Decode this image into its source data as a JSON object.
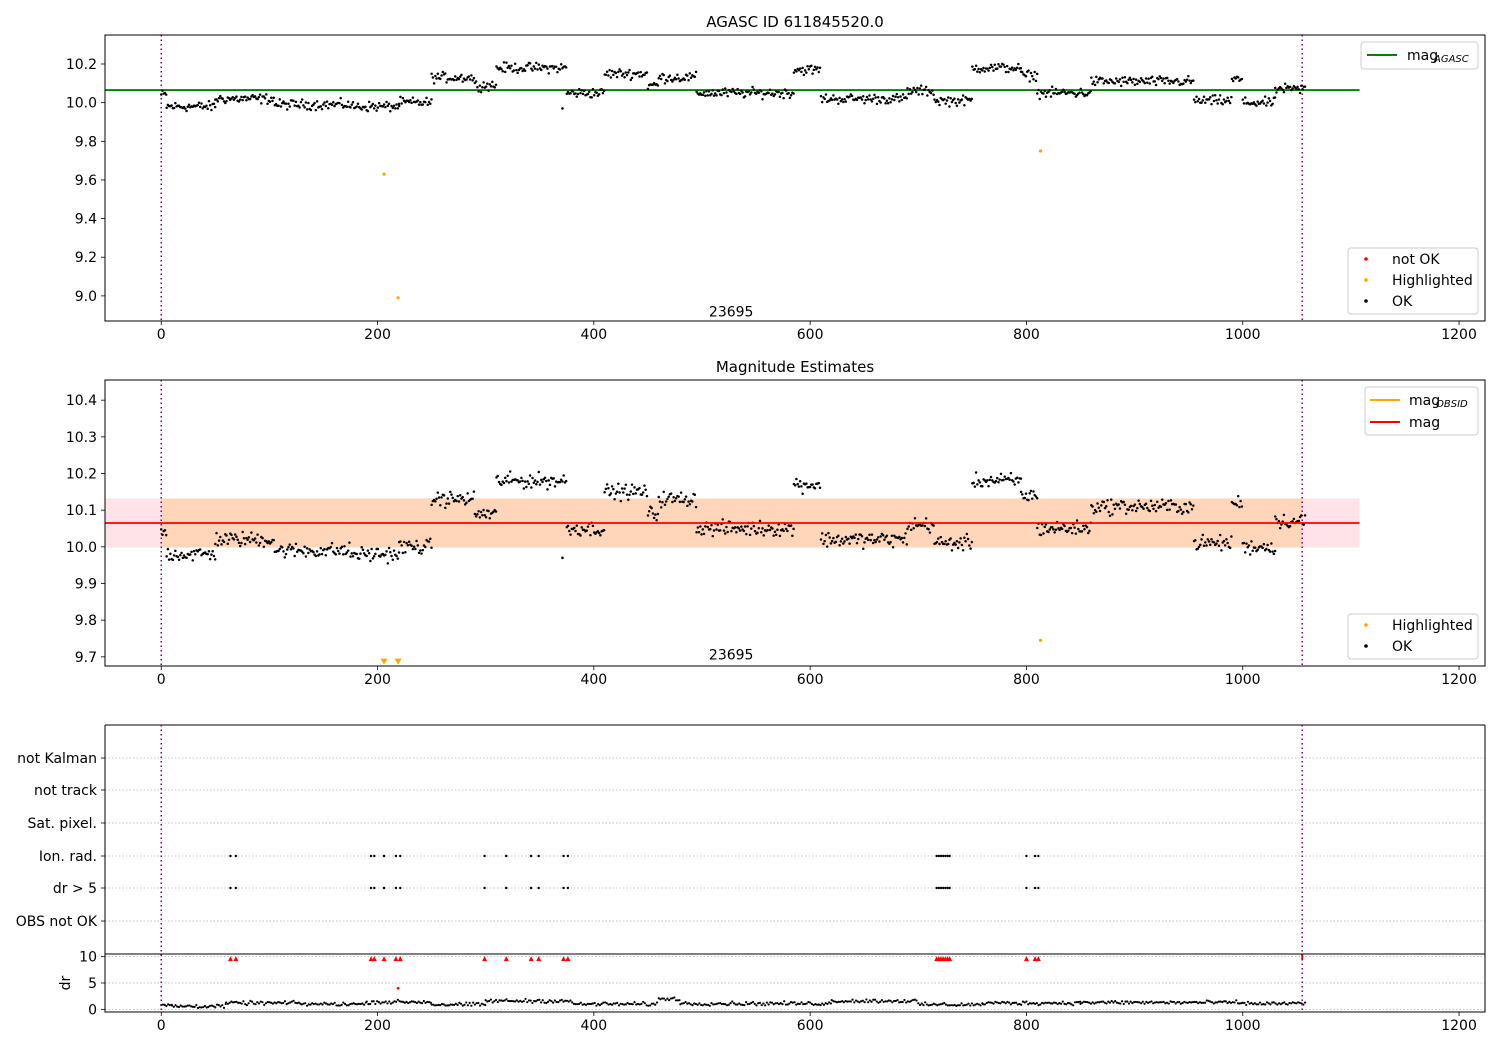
{
  "figure": {
    "title": "AGASC ID 611845520.0",
    "subtitle": "Magnitude Estimates"
  },
  "chart_data": [
    {
      "type": "scatter",
      "title": "AGASC ID 611845520.0",
      "xlim": [
        -52,
        1224
      ],
      "ylim": [
        8.87,
        10.35
      ],
      "xticks": [
        0,
        200,
        400,
        600,
        800,
        1000,
        1200
      ],
      "yticks": [
        9.0,
        9.2,
        9.4,
        9.6,
        9.8,
        10.0,
        10.2
      ],
      "vlines": [
        0,
        1055
      ],
      "obsid_label": {
        "text": "23695",
        "x": 527,
        "y": 8.92
      },
      "mag_agasc": {
        "value": 10.065,
        "xrange": [
          -52,
          1108
        ]
      },
      "ok_segments": [
        [
          0,
          5,
          10.04
        ],
        [
          5,
          50,
          9.98
        ],
        [
          50,
          105,
          10.02
        ],
        [
          105,
          175,
          9.99
        ],
        [
          175,
          220,
          9.98
        ],
        [
          220,
          250,
          10.0
        ],
        [
          250,
          290,
          10.13
        ],
        [
          290,
          310,
          10.09
        ],
        [
          310,
          375,
          10.18
        ],
        [
          375,
          410,
          10.05
        ],
        [
          410,
          450,
          10.15
        ],
        [
          450,
          460,
          10.09
        ],
        [
          460,
          495,
          10.13
        ],
        [
          495,
          585,
          10.05
        ],
        [
          585,
          610,
          10.17
        ],
        [
          610,
          690,
          10.02
        ],
        [
          690,
          715,
          10.06
        ],
        [
          715,
          750,
          10.01
        ],
        [
          750,
          795,
          10.18
        ],
        [
          795,
          810,
          10.14
        ],
        [
          810,
          860,
          10.05
        ],
        [
          860,
          955,
          10.11
        ],
        [
          955,
          990,
          10.01
        ],
        [
          990,
          1000,
          10.12
        ],
        [
          1000,
          1030,
          10.0
        ],
        [
          1030,
          1058,
          10.07
        ]
      ],
      "highlighted": [
        [
          206,
          9.63
        ],
        [
          219,
          8.99
        ],
        [
          813,
          9.75
        ]
      ],
      "legend_series": [
        {
          "name": "mag",
          "subscript": "AGASC",
          "color": "#008000"
        }
      ],
      "legend_markers": [
        {
          "name": "not OK",
          "color": "#ff0000"
        },
        {
          "name": "Highlighted",
          "color": "#ffa500"
        },
        {
          "name": "OK",
          "color": "#000000"
        }
      ]
    },
    {
      "type": "scatter",
      "title": "Magnitude Estimates",
      "xlim": [
        -52,
        1224
      ],
      "ylim": [
        9.675,
        10.455
      ],
      "xticks": [
        0,
        200,
        400,
        600,
        800,
        1000,
        1200
      ],
      "yticks": [
        9.7,
        9.8,
        9.9,
        10.0,
        10.1,
        10.2,
        10.3,
        10.4
      ],
      "vlines": [
        0,
        1055
      ],
      "obsid_label": {
        "text": "23695",
        "x": 527,
        "y": 9.706
      },
      "mag": {
        "value": 10.065,
        "band": [
          9.998,
          10.132
        ],
        "xrange": [
          -52,
          1108
        ]
      },
      "mag_obsid": {
        "value": 10.065,
        "band": [
          9.998,
          10.132
        ],
        "xrange": [
          0,
          1055
        ]
      },
      "highlighted_markers": [
        [
          206,
          9.687
        ],
        [
          219,
          9.687
        ]
      ],
      "highlighted": [
        [
          813,
          9.745
        ]
      ],
      "legend_series": [
        {
          "name": "mag",
          "subscript": "OBSID",
          "color": "#ffa500"
        },
        {
          "name": "mag",
          "subscript": "",
          "color": "#ff0000"
        }
      ],
      "legend_markers": [
        {
          "name": "Highlighted",
          "color": "#ffa500"
        },
        {
          "name": "OK",
          "color": "#000000"
        }
      ]
    },
    {
      "type": "scatter",
      "title": "",
      "xlim": [
        -52,
        1224
      ],
      "xticks": [
        0,
        200,
        400,
        600,
        800,
        1000,
        1200
      ],
      "flag_rows": [
        "not Kalman",
        "not track",
        "Sat. pixel.",
        "Ion. rad.",
        "dr > 5",
        "OBS not OK"
      ],
      "flag_x": [
        64,
        69,
        194,
        197,
        206,
        217,
        221,
        299,
        319,
        342,
        349,
        372,
        376,
        717,
        719,
        721,
        723,
        725,
        727,
        729,
        800,
        808,
        811
      ],
      "dr": {
        "ylabel": "dr",
        "yticks": [
          0,
          5,
          10
        ],
        "ylim": [
          -0.5,
          10.5
        ],
        "outliers_over10": [
          64,
          69,
          194,
          197,
          206,
          217,
          221,
          299,
          319,
          342,
          349,
          372,
          376,
          717,
          719,
          721,
          723,
          725,
          727,
          729,
          800,
          808,
          811
        ],
        "baseline_segments": [
          [
            0,
            10,
            0.8
          ],
          [
            10,
            60,
            0.6
          ],
          [
            60,
            130,
            1.2
          ],
          [
            130,
            190,
            1.0
          ],
          [
            190,
            250,
            1.4
          ],
          [
            250,
            300,
            0.9
          ],
          [
            300,
            380,
            1.6
          ],
          [
            380,
            460,
            1.0
          ],
          [
            460,
            480,
            2.0
          ],
          [
            480,
            620,
            1.1
          ],
          [
            620,
            700,
            1.6
          ],
          [
            700,
            760,
            0.9
          ],
          [
            760,
            850,
            1.2
          ],
          [
            850,
            1000,
            1.3
          ],
          [
            1000,
            1058,
            1.1
          ]
        ]
      }
    }
  ]
}
